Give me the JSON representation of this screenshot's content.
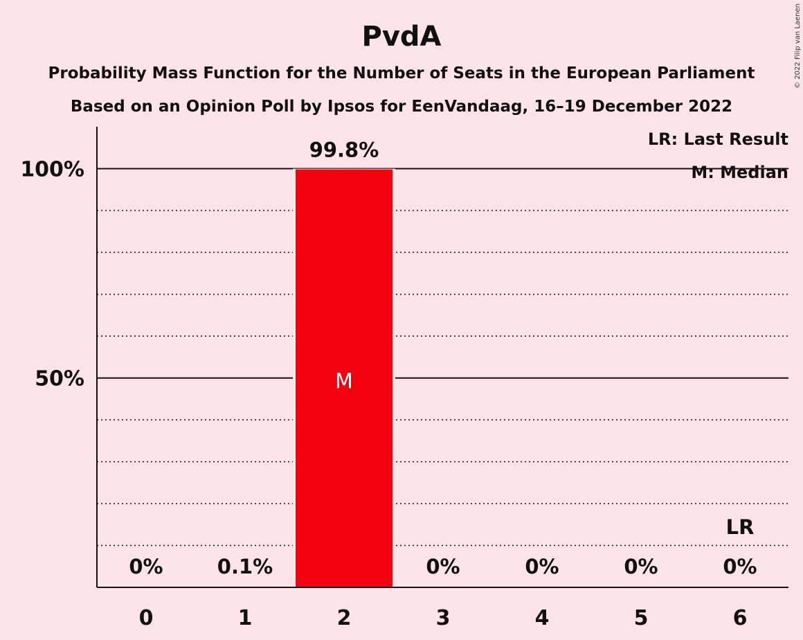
{
  "chart_data": {
    "type": "bar",
    "title": "PvdA",
    "subtitle_lines": [
      "Probability Mass Function for the Number of Seats in the European Parliament",
      "Based on an Opinion Poll by Ipsos for EenVandaag, 16–19 December 2022"
    ],
    "categories": [
      "0",
      "1",
      "2",
      "3",
      "4",
      "5",
      "6"
    ],
    "values": [
      0,
      0.1,
      99.8,
      0,
      0,
      0,
      0
    ],
    "value_labels": [
      "0%",
      "0.1%",
      "99.8%",
      "0%",
      "0%",
      "0%",
      "0%"
    ],
    "ylim": [
      0,
      110
    ],
    "yticks": [
      {
        "value": 50,
        "label": "50%"
      },
      {
        "value": 100,
        "label": "100%"
      }
    ],
    "minor_grid": [
      10,
      20,
      30,
      40,
      60,
      70,
      80,
      90
    ],
    "median_index": 2,
    "median_marker": "M",
    "last_result_index": 6,
    "last_result_marker": "LR",
    "legend": [
      "LR: Last Result",
      "M: Median"
    ],
    "legend_position": "top-right",
    "bar_color": "#f5000f",
    "copyright": "© 2022 Filip van Laenen"
  }
}
